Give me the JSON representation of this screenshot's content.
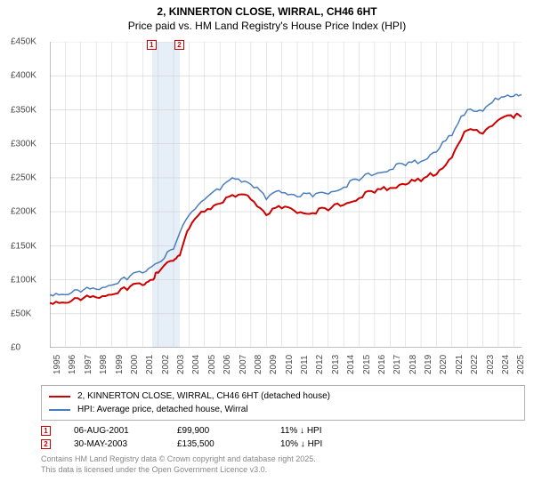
{
  "title": {
    "line1": "2, KINNERTON CLOSE, WIRRAL, CH46 6HT",
    "line2": "Price paid vs. HM Land Registry's House Price Index (HPI)",
    "fontsize": 12
  },
  "chart": {
    "type": "line",
    "background_color": "#ffffff",
    "grid_color": "#d0d0d0",
    "axis_color": "#808080",
    "highlight_band": {
      "x_start": 2001.6,
      "x_end": 2003.4,
      "color": "#e6eef8"
    },
    "xlim": [
      1995,
      2025.5
    ],
    "ylim": [
      0,
      450000
    ],
    "ytick_step": 50000,
    "yticks": [
      "£0",
      "£50K",
      "£100K",
      "£150K",
      "£200K",
      "£250K",
      "£300K",
      "£350K",
      "£400K",
      "£450K"
    ],
    "xticks": [
      "1995",
      "1996",
      "1997",
      "1998",
      "1999",
      "2000",
      "2001",
      "2002",
      "2003",
      "2004",
      "2005",
      "2006",
      "2007",
      "2008",
      "2009",
      "2010",
      "2011",
      "2012",
      "2013",
      "2014",
      "2015",
      "2016",
      "2017",
      "2018",
      "2019",
      "2020",
      "2021",
      "2022",
      "2023",
      "2024",
      "2025"
    ],
    "label_fontsize": 10,
    "series": [
      {
        "name": "2, KINNERTON CLOSE, WIRRAL, CH46 6HT (detached house)",
        "color": "#cc0000",
        "line_width": 2,
        "x": [
          1995,
          1996,
          1997,
          1998,
          1999,
          2000,
          2001,
          2001.6,
          2002,
          2003,
          2003.4,
          2004,
          2005,
          2006,
          2007,
          2008,
          2009,
          2010,
          2011,
          2012,
          2013,
          2014,
          2015,
          2016,
          2017,
          2018,
          2019,
          2020,
          2021,
          2022,
          2023,
          2024,
          2025,
          2025.5
        ],
        "y": [
          66000,
          66000,
          70000,
          74000,
          78000,
          85000,
          92000,
          99900,
          110000,
          128000,
          135500,
          175000,
          200000,
          212000,
          222000,
          218000,
          195000,
          205000,
          198000,
          198000,
          202000,
          210000,
          220000,
          228000,
          235000,
          240000,
          245000,
          255000,
          280000,
          320000,
          315000,
          335000,
          338000,
          340000
        ]
      },
      {
        "name": "HPI: Average price, detached house, Wirral",
        "color": "#4a7ebb",
        "line_width": 1.5,
        "x": [
          1995,
          1996,
          1997,
          1998,
          1999,
          2000,
          2001,
          2002,
          2003,
          2004,
          2005,
          2006,
          2007,
          2008,
          2009,
          2010,
          2011,
          2012,
          2013,
          2014,
          2015,
          2016,
          2017,
          2018,
          2019,
          2020,
          2021,
          2022,
          2023,
          2024,
          2025,
          2025.5
        ],
        "y": [
          78000,
          78000,
          82000,
          86000,
          92000,
          100000,
          110000,
          125000,
          145000,
          195000,
          218000,
          232000,
          248000,
          240000,
          218000,
          228000,
          222000,
          222000,
          226000,
          236000,
          246000,
          255000,
          262000,
          268000,
          274000,
          288000,
          312000,
          350000,
          348000,
          365000,
          370000,
          372000
        ]
      }
    ],
    "markers": [
      {
        "label": "1",
        "x": 2001.6,
        "y": 99900,
        "color": "#cc0000"
      },
      {
        "label": "2",
        "x": 2003.4,
        "y": 135500,
        "color": "#cc0000"
      }
    ]
  },
  "legend": {
    "border_color": "#b0b0b0",
    "items": [
      {
        "color": "#cc0000",
        "label": "2, KINNERTON CLOSE, WIRRAL, CH46 6HT (detached house)"
      },
      {
        "color": "#4a7ebb",
        "label": "HPI: Average price, detached house, Wirral"
      }
    ]
  },
  "transactions": [
    {
      "marker": "1",
      "marker_color": "#cc0000",
      "date": "06-AUG-2001",
      "price": "£99,900",
      "delta": "11% ↓ HPI"
    },
    {
      "marker": "2",
      "marker_color": "#cc0000",
      "date": "30-MAY-2003",
      "price": "£135,500",
      "delta": "10% ↓ HPI"
    }
  ],
  "footer": {
    "line1": "Contains HM Land Registry data © Crown copyright and database right 2025.",
    "line2": "This data is licensed under the Open Government Licence v3.0.",
    "color": "#888888"
  }
}
